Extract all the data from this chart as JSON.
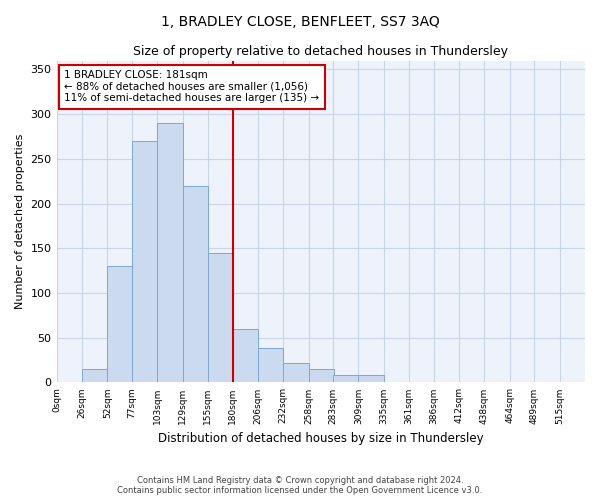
{
  "title": "1, BRADLEY CLOSE, BENFLEET, SS7 3AQ",
  "subtitle": "Size of property relative to detached houses in Thundersley",
  "xlabel": "Distribution of detached houses by size in Thundersley",
  "ylabel": "Number of detached properties",
  "footer_line1": "Contains HM Land Registry data © Crown copyright and database right 2024.",
  "footer_line2": "Contains public sector information licensed under the Open Government Licence v3.0.",
  "annotation_line1": "1 BRADLEY CLOSE: 181sqm",
  "annotation_line2": "← 88% of detached houses are smaller (1,056)",
  "annotation_line3": "11% of semi-detached houses are larger (135) →",
  "property_size": 181,
  "bin_starts": [
    0,
    26,
    52,
    77,
    103,
    129,
    155,
    180,
    206,
    232,
    258,
    283,
    309,
    335,
    361,
    386,
    412,
    438,
    464,
    489
  ],
  "bar_heights": [
    0,
    15,
    130,
    270,
    290,
    220,
    145,
    60,
    38,
    22,
    15,
    8,
    8,
    0,
    0,
    0,
    0,
    0,
    0,
    0
  ],
  "bar_color": "#ccdaf0",
  "bar_edge_color": "#7aa8d8",
  "redline_color": "#cc0000",
  "annotation_box_color": "#cc0000",
  "grid_color": "#c8d4e8",
  "background_color": "#eef3fb",
  "ylim": [
    0,
    360
  ],
  "yticks": [
    0,
    50,
    100,
    150,
    200,
    250,
    300,
    350
  ],
  "xtick_labels": [
    "0sqm",
    "26sqm",
    "52sqm",
    "77sqm",
    "103sqm",
    "129sqm",
    "155sqm",
    "180sqm",
    "206sqm",
    "232sqm",
    "258sqm",
    "283sqm",
    "309sqm",
    "335sqm",
    "361sqm",
    "386sqm",
    "412sqm",
    "438sqm",
    "464sqm",
    "489sqm",
    "515sqm"
  ],
  "title_fontsize": 10,
  "subtitle_fontsize": 9,
  "ylabel_fontsize": 8,
  "xlabel_fontsize": 8.5,
  "annotation_fontsize": 7.5,
  "footer_fontsize": 6,
  "ytick_fontsize": 8,
  "xtick_fontsize": 6.5
}
